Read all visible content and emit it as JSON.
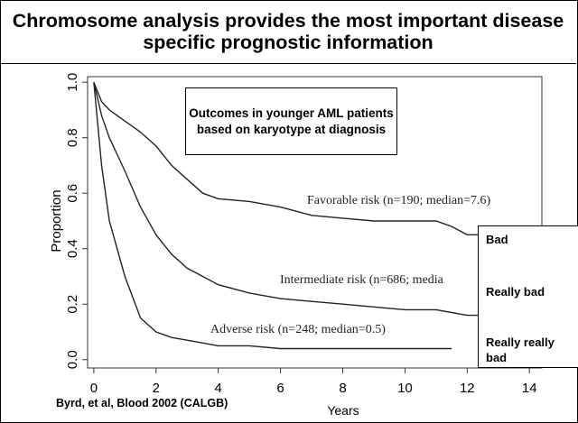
{
  "chart_data": {
    "type": "line",
    "title": "Chromosome analysis provides the most important disease specific prognostic information",
    "x_label": "Years",
    "y_label": "Proportion",
    "x": [
      0,
      0.25,
      0.5,
      1,
      1.5,
      2,
      2.5,
      3,
      3.5,
      4,
      5,
      6,
      7,
      8,
      9,
      10,
      11,
      11.5,
      12,
      13
    ],
    "series": [
      {
        "name": "Favorable risk (n=190; median=7.6)",
        "color": "#222222",
        "values": [
          1.0,
          0.93,
          0.9,
          0.86,
          0.82,
          0.77,
          0.7,
          0.65,
          0.6,
          0.58,
          0.57,
          0.55,
          0.52,
          0.51,
          0.5,
          0.5,
          0.5,
          0.48,
          0.45,
          0.45
        ]
      },
      {
        "name": "Intermediate risk (n=686; media",
        "color": "#222222",
        "values": [
          1.0,
          0.88,
          0.8,
          0.68,
          0.55,
          0.45,
          0.38,
          0.33,
          0.3,
          0.27,
          0.24,
          0.22,
          0.21,
          0.2,
          0.19,
          0.18,
          0.18,
          0.17,
          0.16,
          0.16
        ]
      },
      {
        "name": "Adverse risk (n=248; median=0.5)",
        "color": "#222222",
        "values": [
          1.0,
          0.7,
          0.5,
          0.3,
          0.15,
          0.1,
          0.08,
          0.07,
          0.06,
          0.05,
          0.05,
          0.04,
          0.04,
          0.04,
          0.04,
          0.04,
          0.04,
          0.04,
          null,
          null
        ]
      }
    ],
    "xlim": [
      -0.2,
      14.4
    ],
    "ylim": [
      -0.03,
      1.02
    ],
    "xticks": [
      0,
      2,
      4,
      6,
      8,
      10,
      12,
      14
    ],
    "yticks": [
      {
        "value": 0,
        "label": "0.0"
      },
      0.2,
      0.4,
      0.6,
      0.8,
      {
        "value": 1,
        "label": "1.0"
      }
    ],
    "note": "Outcomes in younger AML patients based on karyotype at diagnosis",
    "overlay_labels": [
      "Bad",
      "Really bad",
      "Really really bad"
    ],
    "source": "Byrd, et al, Blood 2002 (CALGB)"
  }
}
